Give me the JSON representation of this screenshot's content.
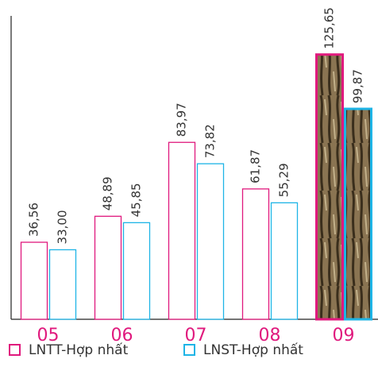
{
  "chart_data": {
    "type": "bar",
    "categories": [
      "05",
      "06",
      "07",
      "08",
      "09"
    ],
    "series": [
      {
        "name": "LNTT-Hợp nhất",
        "color": "#e0197d",
        "values": [
          36.56,
          48.89,
          83.97,
          61.87,
          125.65
        ],
        "value_labels": [
          "36,56",
          "48,89",
          "83,97",
          "61,87",
          "125,65"
        ]
      },
      {
        "name": "LNST-Hợp nhất",
        "color": "#1eb4e6",
        "values": [
          33.0,
          45.85,
          73.82,
          55.29,
          99.87
        ],
        "value_labels": [
          "33,00",
          "45,85",
          "73,82",
          "55,29",
          "99,87"
        ]
      }
    ],
    "ylim": [
      0,
      144
    ]
  }
}
